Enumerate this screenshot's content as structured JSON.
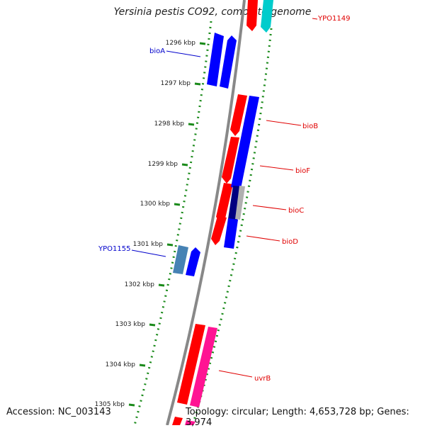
{
  "title": "Yersinia pestis CO92, complete genome",
  "footer": {
    "accession": "Accession: NC_003143",
    "stats": "Topology: circular; Length: 4,653,728 bp; Genes: 3,974"
  },
  "ticks": [
    {
      "label": "1296 kbp"
    },
    {
      "label": "1297 kbp"
    },
    {
      "label": "1298 kbp"
    },
    {
      "label": "1299 kbp"
    },
    {
      "label": "1300 kbp"
    },
    {
      "label": "1301 kbp"
    },
    {
      "label": "1302 kbp"
    },
    {
      "label": "1303 kbp"
    },
    {
      "label": "1304 kbp"
    },
    {
      "label": "1305 kbp"
    }
  ],
  "gene_labels": [
    {
      "text": "YPO1149",
      "color": "#e00000"
    },
    {
      "text": "bioA",
      "color": "#0000cc"
    },
    {
      "text": "bioB",
      "color": "#e00000"
    },
    {
      "text": "bioF",
      "color": "#e00000"
    },
    {
      "text": "bioC",
      "color": "#e00000"
    },
    {
      "text": "bioD",
      "color": "#e00000"
    },
    {
      "text": "YPO1155",
      "color": "#0000cc"
    },
    {
      "text": "uvrB",
      "color": "#e00000"
    }
  ],
  "colors": {
    "backbone": "#888888",
    "tick": "#1a8a1a",
    "forward_gene": "#ff0000",
    "reverse_gene": "#0000ff",
    "rna": "#00cccc",
    "steel": "#4682b4",
    "pink": "#ff1493"
  }
}
